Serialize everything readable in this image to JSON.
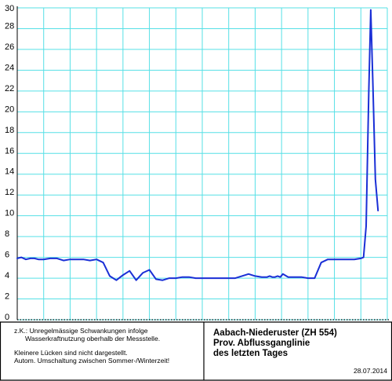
{
  "chart_data": {
    "type": "line",
    "title": "",
    "xlabel": "",
    "ylabel": "",
    "ylim": [
      0,
      30
    ],
    "yticks": [
      0,
      2,
      4,
      6,
      8,
      10,
      12,
      14,
      16,
      18,
      20,
      22,
      24,
      26,
      28,
      30
    ],
    "grid": true,
    "colors": {
      "series": "#1a2fd6",
      "grid": "#56e0e6",
      "axis": "#000000"
    },
    "series": [
      {
        "name": "",
        "x": [
          0,
          0.3,
          0.65,
          1,
          1.3,
          1.6,
          2,
          2.5,
          3,
          3.5,
          4,
          4.5,
          5,
          5.5,
          6,
          6.5,
          7,
          7.5,
          8,
          8.5,
          9,
          9.5,
          10,
          10.5,
          11,
          11.5,
          12,
          12.5,
          13,
          13.5,
          14,
          14.5,
          15,
          15.5,
          16,
          16.5,
          17,
          17.5,
          18,
          18.5,
          18.9,
          19.1,
          19.3,
          19.5,
          19.7,
          19.9,
          20.1,
          20.5,
          21,
          21.5,
          22,
          22.5,
          23,
          23.5,
          24,
          24.5,
          25,
          25.5,
          26,
          26.2,
          26.4,
          26.6,
          26.75,
          26.9,
          27.1,
          27.3
        ],
        "y": [
          5.9,
          6.0,
          5.8,
          5.9,
          5.9,
          5.8,
          5.8,
          5.9,
          5.9,
          5.7,
          5.8,
          5.8,
          5.8,
          5.7,
          5.8,
          5.5,
          4.2,
          3.8,
          4.3,
          4.7,
          3.8,
          4.5,
          4.8,
          3.9,
          3.8,
          4.0,
          4.0,
          4.1,
          4.1,
          4.0,
          4.0,
          4.0,
          4.0,
          4.0,
          4.0,
          4.0,
          4.2,
          4.4,
          4.2,
          4.1,
          4.1,
          4.2,
          4.1,
          4.1,
          4.2,
          4.1,
          4.4,
          4.1,
          4.1,
          4.1,
          4.0,
          4.0,
          5.5,
          5.8,
          5.8,
          5.8,
          5.8,
          5.8,
          5.9,
          6.0,
          9.0,
          22.0,
          29.8,
          23.0,
          13.5,
          10.5
        ]
      }
    ]
  },
  "notes": {
    "line1": "z.K.: Unregelmässige Schwankungen infolge",
    "line2": "Wasserkraftnutzung oberhalb der Messstelle.",
    "line3": "Kleinere Lücken sind nicht dargestellt.",
    "line4": "Autom. Umschaltung zwischen Sommer-/Winterzeit!"
  },
  "station": {
    "name": "Aabach-Niederuster (ZH 554)",
    "subtitle1": "Prov. Abflussganglinie",
    "subtitle2": "des letzten Tages"
  },
  "date": "28.07.2014"
}
